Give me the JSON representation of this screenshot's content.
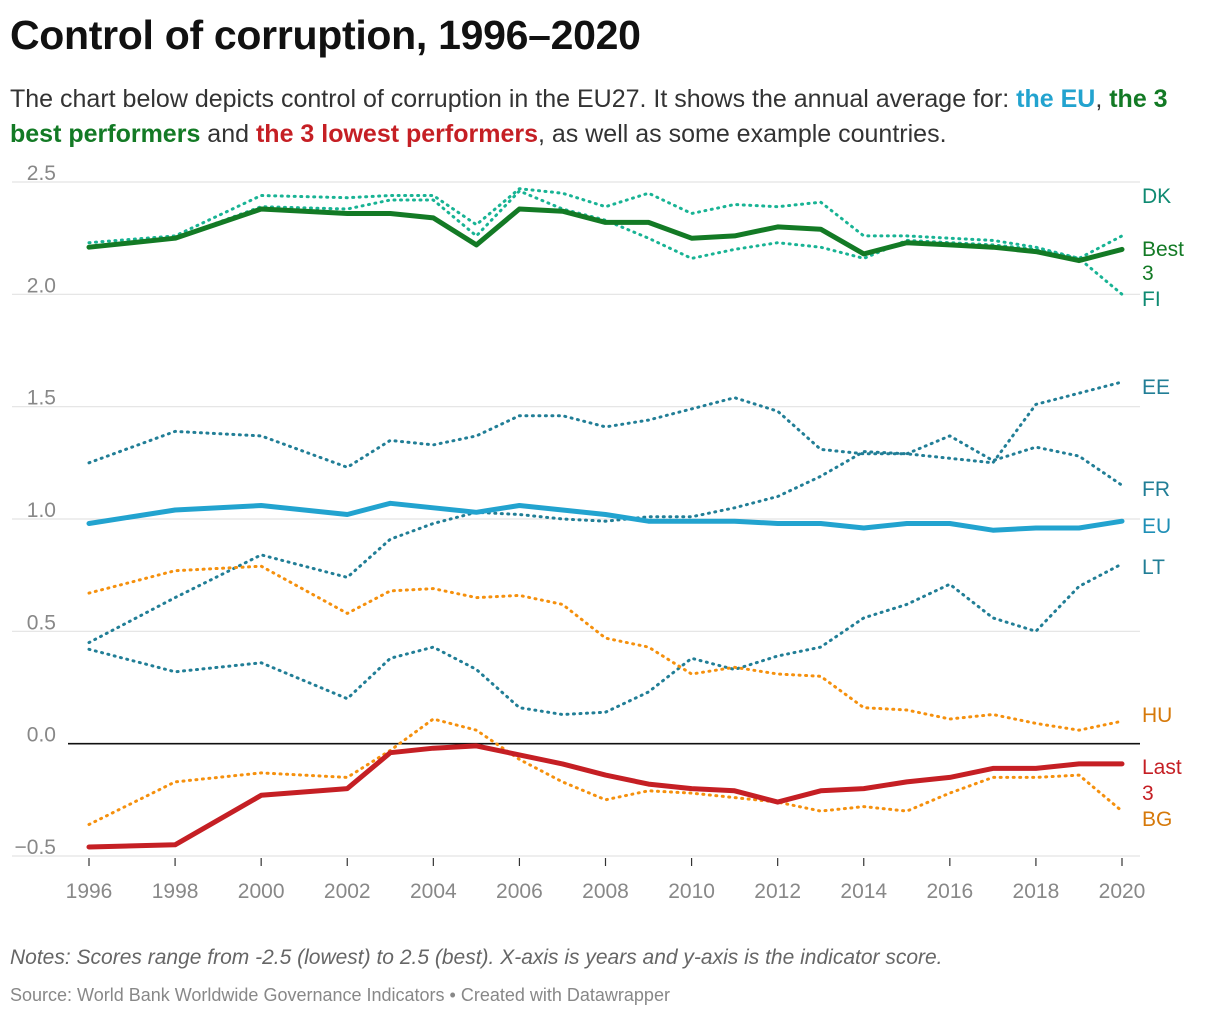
{
  "header": {
    "title": "Control of corruption, 1996–2020",
    "subtitle_part1": "The chart below depicts control of corruption in the EU27. It shows the annual average for: ",
    "subtitle_eu": "the EU",
    "subtitle_sep1": ", ",
    "subtitle_best": "the 3 best performers",
    "subtitle_and": " and ",
    "subtitle_low": "the 3 lowest performers",
    "subtitle_end": ", as well as some example countries."
  },
  "footer": {
    "notes": "Notes: Scores range from -2.5 (lowest) to 2.5 (best). X-axis is years and y-axis is the indicator score.",
    "source": "Source: World Bank Worldwide Governance Indicators • Created with Datawrapper"
  },
  "chart_data": {
    "type": "line",
    "xlim": [
      1996,
      2020
    ],
    "ylim": [
      -0.5,
      2.5
    ],
    "x_ticks": [
      1996,
      1998,
      2000,
      2002,
      2004,
      2006,
      2008,
      2010,
      2012,
      2014,
      2016,
      2018,
      2020
    ],
    "y_ticks": [
      -0.5,
      0.0,
      0.5,
      1.0,
      1.5,
      2.0,
      2.5
    ],
    "y_tick_labels": [
      "−0.5",
      "0.0",
      "0.5",
      "1.0",
      "1.5",
      "2.0",
      "2.5"
    ],
    "grid": true,
    "x": [
      1996,
      1998,
      2000,
      2002,
      2003,
      2004,
      2005,
      2006,
      2007,
      2008,
      2009,
      2010,
      2011,
      2012,
      2013,
      2014,
      2015,
      2016,
      2017,
      2018,
      2019,
      2020
    ],
    "series": [
      {
        "name": "DK",
        "color": "#18b394",
        "label_color": "#0f8a72",
        "style": "dotted",
        "width": 3,
        "values": [
          2.23,
          2.26,
          2.44,
          2.43,
          2.44,
          2.44,
          2.31,
          2.47,
          2.45,
          2.39,
          2.45,
          2.36,
          2.4,
          2.39,
          2.41,
          2.26,
          2.26,
          2.25,
          2.24,
          2.21,
          2.16,
          2.26
        ]
      },
      {
        "name": "FI",
        "color": "#18b394",
        "label_color": "#0f8a72",
        "style": "dotted",
        "width": 3,
        "values": [
          2.21,
          2.25,
          2.39,
          2.38,
          2.42,
          2.42,
          2.26,
          2.46,
          2.38,
          2.33,
          2.25,
          2.16,
          2.2,
          2.23,
          2.21,
          2.16,
          2.24,
          2.23,
          2.22,
          2.2,
          2.16,
          2.0
        ]
      },
      {
        "name": "Best 3",
        "color": "#137a25",
        "label_color": "#137a25",
        "style": "solid",
        "width": 5,
        "values": [
          2.21,
          2.25,
          2.38,
          2.36,
          2.36,
          2.34,
          2.22,
          2.38,
          2.37,
          2.32,
          2.32,
          2.25,
          2.26,
          2.3,
          2.29,
          2.18,
          2.23,
          2.22,
          2.21,
          2.19,
          2.15,
          2.2
        ]
      },
      {
        "name": "EE",
        "color": "#217e96",
        "label_color": "#217e96",
        "style": "dotted",
        "width": 3,
        "values": [
          0.45,
          0.65,
          0.84,
          0.74,
          0.91,
          0.98,
          1.03,
          1.02,
          1.0,
          0.99,
          1.01,
          1.01,
          1.05,
          1.1,
          1.19,
          1.3,
          1.29,
          1.27,
          1.25,
          1.51,
          1.56,
          1.61
        ]
      },
      {
        "name": "FR",
        "color": "#217e96",
        "label_color": "#217e96",
        "style": "dotted",
        "width": 3,
        "values": [
          1.25,
          1.39,
          1.37,
          1.23,
          1.35,
          1.33,
          1.37,
          1.46,
          1.46,
          1.41,
          1.44,
          1.49,
          1.54,
          1.48,
          1.31,
          1.29,
          1.29,
          1.37,
          1.26,
          1.32,
          1.28,
          1.15
        ]
      },
      {
        "name": "LT",
        "color": "#217e96",
        "label_color": "#217e96",
        "style": "dotted",
        "width": 3,
        "values": [
          0.42,
          0.32,
          0.36,
          0.2,
          0.38,
          0.43,
          0.33,
          0.16,
          0.13,
          0.14,
          0.23,
          0.38,
          0.33,
          0.39,
          0.43,
          0.56,
          0.62,
          0.71,
          0.56,
          0.5,
          0.7,
          0.8
        ]
      },
      {
        "name": "EU",
        "color": "#22a3cf",
        "label_color": "#1f8fb6",
        "style": "solid",
        "width": 5,
        "values": [
          0.98,
          1.04,
          1.06,
          1.02,
          1.07,
          1.05,
          1.03,
          1.06,
          1.04,
          1.02,
          0.99,
          0.99,
          0.99,
          0.98,
          0.98,
          0.96,
          0.98,
          0.98,
          0.95,
          0.96,
          0.96,
          0.99
        ]
      },
      {
        "name": "HU",
        "color": "#f5900d",
        "label_color": "#d6790a",
        "style": "dotted",
        "width": 3,
        "values": [
          0.67,
          0.77,
          0.79,
          0.58,
          0.68,
          0.69,
          0.65,
          0.66,
          0.62,
          0.47,
          0.43,
          0.31,
          0.34,
          0.31,
          0.3,
          0.16,
          0.15,
          0.11,
          0.13,
          0.09,
          0.06,
          0.1
        ]
      },
      {
        "name": "BG",
        "color": "#f5900d",
        "label_color": "#d6790a",
        "style": "dotted",
        "width": 3,
        "values": [
          -0.36,
          -0.17,
          -0.13,
          -0.15,
          -0.03,
          0.11,
          0.06,
          -0.07,
          -0.17,
          -0.25,
          -0.21,
          -0.22,
          -0.24,
          -0.26,
          -0.3,
          -0.28,
          -0.3,
          -0.22,
          -0.15,
          -0.15,
          -0.14,
          -0.3
        ]
      },
      {
        "name": "Last 3",
        "color": "#c51f24",
        "label_color": "#c51f24",
        "style": "solid",
        "width": 5,
        "values": [
          -0.46,
          -0.45,
          -0.23,
          -0.2,
          -0.04,
          -0.02,
          -0.01,
          -0.05,
          -0.09,
          -0.14,
          -0.18,
          -0.2,
          -0.21,
          -0.26,
          -0.21,
          -0.2,
          -0.17,
          -0.15,
          -0.11,
          -0.11,
          -0.09,
          -0.09
        ]
      }
    ],
    "series_labels": [
      {
        "text": "DK",
        "series": "DK"
      },
      {
        "text": "Best",
        "series": "Best 3"
      },
      {
        "text": "3",
        "series": "Best 3"
      },
      {
        "text": "FI",
        "series": "FI"
      },
      {
        "text": "EE",
        "series": "EE"
      },
      {
        "text": "FR",
        "series": "FR"
      },
      {
        "text": "EU",
        "series": "EU"
      },
      {
        "text": "LT",
        "series": "LT"
      },
      {
        "text": "HU",
        "series": "HU"
      },
      {
        "text": "Last",
        "series": "Last 3"
      },
      {
        "text": "3",
        "series": "Last 3"
      },
      {
        "text": "BG",
        "series": "BG"
      }
    ]
  }
}
